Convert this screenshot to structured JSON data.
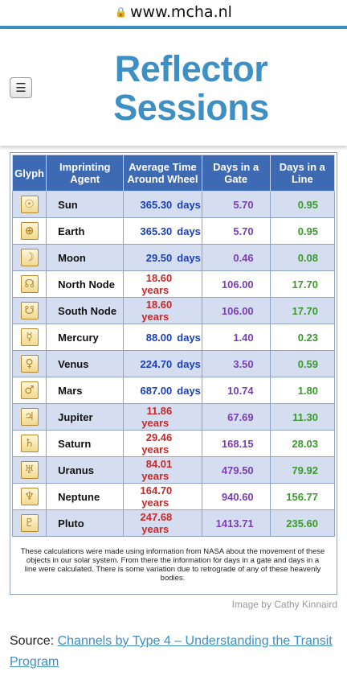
{
  "browser": {
    "url": "www.mcha.nl"
  },
  "header": {
    "logo_line1": "Reflector",
    "logo_line2": "Sessions",
    "menu_icon": "hamburger-icon"
  },
  "table": {
    "headers": [
      "Glyph",
      "Imprinting Agent",
      "Average Time Around Wheel",
      "Days in a Gate",
      "Days in a Line"
    ],
    "rows": [
      {
        "glyph": "☉",
        "agent": "Sun",
        "avg_value": "365.30",
        "avg_unit": "days",
        "gate": "5.70",
        "line": "0.95"
      },
      {
        "glyph": "⊕",
        "agent": "Earth",
        "avg_value": "365.30",
        "avg_unit": "days",
        "gate": "5.70",
        "line": "0.95"
      },
      {
        "glyph": "☽",
        "agent": "Moon",
        "avg_value": "29.50",
        "avg_unit": "days",
        "gate": "0.46",
        "line": "0.08"
      },
      {
        "glyph": "☊",
        "agent": "North Node",
        "avg_value": "18.60",
        "avg_unit": "years",
        "gate": "106.00",
        "line": "17.70"
      },
      {
        "glyph": "☋",
        "agent": "South Node",
        "avg_value": "18.60",
        "avg_unit": "years",
        "gate": "106.00",
        "line": "17.70"
      },
      {
        "glyph": "☿",
        "agent": "Mercury",
        "avg_value": "88.00",
        "avg_unit": "days",
        "gate": "1.40",
        "line": "0.23"
      },
      {
        "glyph": "♀",
        "agent": "Venus",
        "avg_value": "224.70",
        "avg_unit": "days",
        "gate": "3.50",
        "line": "0.59"
      },
      {
        "glyph": "♂",
        "agent": "Mars",
        "avg_value": "687.00",
        "avg_unit": "days",
        "gate": "10.74",
        "line": "1.80"
      },
      {
        "glyph": "♃",
        "agent": "Jupiter",
        "avg_value": "11.86",
        "avg_unit": "years",
        "gate": "67.69",
        "line": "11.30"
      },
      {
        "glyph": "♄",
        "agent": "Saturn",
        "avg_value": "29.46",
        "avg_unit": "years",
        "gate": "168.15",
        "line": "28.03"
      },
      {
        "glyph": "♅",
        "agent": "Uranus",
        "avg_value": "84.01",
        "avg_unit": "years",
        "gate": "479.50",
        "line": "79.92"
      },
      {
        "glyph": "♆",
        "agent": "Neptune",
        "avg_value": "164.70",
        "avg_unit": "years",
        "gate": "940.60",
        "line": "156.77"
      },
      {
        "glyph": "♇",
        "agent": "Pluto",
        "avg_value": "247.68",
        "avg_unit": "years",
        "gate": "1413.71",
        "line": "235.60"
      }
    ],
    "note": "These calculations were made using information from NASA about the movement of these objects in our solar system. From there the information for days in a gate and days in a line were calculated. There is some variation due to retrograde of any of these heavenly bodies."
  },
  "credit": "Image by Cathy Kinnaird",
  "source": {
    "label": "Source:",
    "link_text": "Channels by Type 4 – Understanding the Transit Program"
  },
  "colors": {
    "accent": "#3d8fc4",
    "header_bg": "#3e69b3",
    "days": "#1a3fb6",
    "years": "#c62828",
    "gate": "#7b3db6",
    "line": "#3b9a2c"
  }
}
